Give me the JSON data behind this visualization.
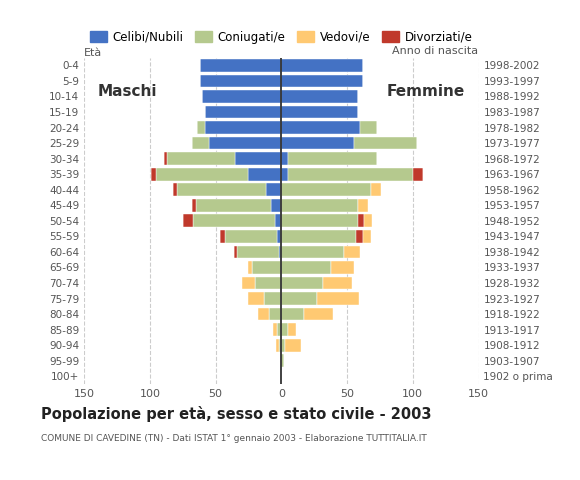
{
  "age_groups": [
    "100+",
    "95-99",
    "90-94",
    "85-89",
    "80-84",
    "75-79",
    "70-74",
    "65-69",
    "60-64",
    "55-59",
    "50-54",
    "45-49",
    "40-44",
    "35-39",
    "30-34",
    "25-29",
    "20-24",
    "15-19",
    "10-14",
    "5-9",
    "0-4"
  ],
  "birth_years": [
    "1902 o prima",
    "1903-1907",
    "1908-1912",
    "1913-1917",
    "1918-1922",
    "1923-1927",
    "1928-1932",
    "1933-1937",
    "1938-1942",
    "1943-1947",
    "1948-1952",
    "1953-1957",
    "1958-1962",
    "1963-1967",
    "1968-1972",
    "1973-1977",
    "1978-1982",
    "1983-1987",
    "1988-1992",
    "1993-1997",
    "1998-2002"
  ],
  "m_cel": [
    0,
    0,
    0,
    0,
    0,
    0,
    0,
    0,
    2,
    3,
    5,
    8,
    12,
    25,
    35,
    55,
    58,
    58,
    60,
    62,
    62
  ],
  "m_con": [
    0,
    0,
    2,
    3,
    9,
    13,
    20,
    22,
    32,
    40,
    62,
    57,
    67,
    70,
    52,
    13,
    6,
    0,
    0,
    0,
    0
  ],
  "m_ved": [
    0,
    0,
    2,
    3,
    9,
    12,
    10,
    3,
    0,
    0,
    0,
    0,
    0,
    0,
    0,
    0,
    0,
    0,
    0,
    0,
    0
  ],
  "m_div": [
    0,
    0,
    0,
    0,
    0,
    0,
    0,
    0,
    2,
    4,
    8,
    3,
    3,
    4,
    2,
    0,
    0,
    0,
    0,
    0,
    0
  ],
  "f_nub": [
    0,
    0,
    0,
    0,
    0,
    0,
    0,
    0,
    0,
    0,
    0,
    0,
    0,
    5,
    5,
    55,
    60,
    58,
    58,
    62,
    62
  ],
  "f_con": [
    0,
    2,
    3,
    5,
    17,
    27,
    32,
    38,
    48,
    57,
    58,
    58,
    68,
    95,
    68,
    48,
    13,
    0,
    0,
    0,
    0
  ],
  "f_ved": [
    0,
    0,
    12,
    6,
    22,
    32,
    22,
    17,
    12,
    6,
    6,
    8,
    8,
    0,
    0,
    0,
    0,
    0,
    0,
    0,
    0
  ],
  "f_div": [
    0,
    0,
    0,
    0,
    0,
    0,
    0,
    0,
    0,
    5,
    5,
    0,
    0,
    8,
    0,
    0,
    0,
    0,
    0,
    0,
    0
  ],
  "col_cel": "#4472c4",
  "col_con": "#b5c98e",
  "col_ved": "#ffc972",
  "col_div": "#c0392b",
  "xlim": 150,
  "title": "Popolazione per età, sesso e stato civile - 2003",
  "subtitle": "COMUNE DI CAVEDINE (TN) - Dati ISTAT 1° gennaio 2003 - Elaborazione TUTTITALIA.IT",
  "legend_labels": [
    "Celibi/Nubili",
    "Coniugati/e",
    "Vedovi/e",
    "Divorziati/e"
  ],
  "label_eta": "Età",
  "label_anno": "Anno di nascita",
  "label_maschi": "Maschi",
  "label_femmine": "Femmine"
}
